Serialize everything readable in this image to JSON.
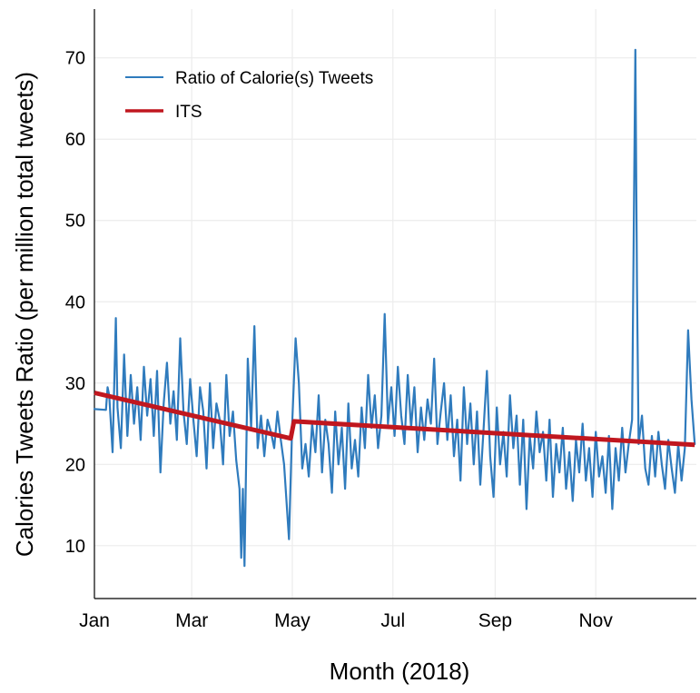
{
  "chart_data": {
    "type": "line",
    "title": "",
    "xlabel": "Month (2018)",
    "ylabel": "Calories Tweets Ratio (per million total tweets)",
    "ylim": [
      3.5,
      76
    ],
    "xlim": [
      "2018-01-01",
      "2018-12-31"
    ],
    "grid": true,
    "legend_position": "top-left",
    "x_ticks": [
      {
        "date": "2018-01-01",
        "label": "Jan"
      },
      {
        "date": "2018-03-01",
        "label": "Mar"
      },
      {
        "date": "2018-05-01",
        "label": "May"
      },
      {
        "date": "2018-07-01",
        "label": "Jul"
      },
      {
        "date": "2018-09-01",
        "label": "Sep"
      },
      {
        "date": "2018-11-01",
        "label": "Nov"
      }
    ],
    "y_ticks": [
      10,
      20,
      30,
      40,
      50,
      60,
      70
    ],
    "series": [
      {
        "name": "Ratio of Calorie(s) Tweets",
        "color": "#2f7bbd",
        "style": "thin-line",
        "points": [
          [
            "2018-01-01",
            26.8
          ],
          [
            "2018-01-08",
            26.7
          ],
          [
            "2018-01-09",
            29.5
          ],
          [
            "2018-01-10",
            28.5
          ],
          [
            "2018-01-12",
            21.5
          ],
          [
            "2018-01-14",
            38.0
          ],
          [
            "2018-01-15",
            27.0
          ],
          [
            "2018-01-17",
            22.0
          ],
          [
            "2018-01-19",
            33.5
          ],
          [
            "2018-01-21",
            23.5
          ],
          [
            "2018-01-23",
            31.0
          ],
          [
            "2018-01-25",
            25.0
          ],
          [
            "2018-01-27",
            29.5
          ],
          [
            "2018-01-29",
            23.0
          ],
          [
            "2018-01-31",
            32.0
          ],
          [
            "2018-02-02",
            26.0
          ],
          [
            "2018-02-04",
            30.5
          ],
          [
            "2018-02-06",
            23.5
          ],
          [
            "2018-02-08",
            31.5
          ],
          [
            "2018-02-10",
            19.0
          ],
          [
            "2018-02-12",
            27.5
          ],
          [
            "2018-02-14",
            32.5
          ],
          [
            "2018-02-16",
            25.0
          ],
          [
            "2018-02-18",
            29.0
          ],
          [
            "2018-02-20",
            23.0
          ],
          [
            "2018-02-22",
            35.5
          ],
          [
            "2018-02-24",
            26.5
          ],
          [
            "2018-02-26",
            22.5
          ],
          [
            "2018-02-28",
            30.5
          ],
          [
            "2018-03-02",
            25.5
          ],
          [
            "2018-03-04",
            21.0
          ],
          [
            "2018-03-06",
            29.5
          ],
          [
            "2018-03-08",
            26.5
          ],
          [
            "2018-03-10",
            19.5
          ],
          [
            "2018-03-12",
            30.0
          ],
          [
            "2018-03-14",
            22.0
          ],
          [
            "2018-03-16",
            27.5
          ],
          [
            "2018-03-18",
            25.5
          ],
          [
            "2018-03-20",
            20.0
          ],
          [
            "2018-03-22",
            31.0
          ],
          [
            "2018-03-24",
            23.5
          ],
          [
            "2018-03-26",
            26.5
          ],
          [
            "2018-03-28",
            20.5
          ],
          [
            "2018-03-30",
            17.0
          ],
          [
            "2018-03-31",
            8.5
          ],
          [
            "2018-04-01",
            17.0
          ],
          [
            "2018-04-02",
            7.5
          ],
          [
            "2018-04-04",
            33.0
          ],
          [
            "2018-04-06",
            24.5
          ],
          [
            "2018-04-08",
            37.0
          ],
          [
            "2018-04-10",
            22.0
          ],
          [
            "2018-04-12",
            26.0
          ],
          [
            "2018-04-14",
            21.0
          ],
          [
            "2018-04-16",
            25.5
          ],
          [
            "2018-04-18",
            24.0
          ],
          [
            "2018-04-20",
            22.0
          ],
          [
            "2018-04-22",
            26.5
          ],
          [
            "2018-04-24",
            23.0
          ],
          [
            "2018-04-26",
            20.0
          ],
          [
            "2018-04-29",
            10.8
          ],
          [
            "2018-05-01",
            25.5
          ],
          [
            "2018-05-03",
            35.5
          ],
          [
            "2018-05-05",
            30.0
          ],
          [
            "2018-05-07",
            19.5
          ],
          [
            "2018-05-09",
            22.5
          ],
          [
            "2018-05-11",
            18.5
          ],
          [
            "2018-05-13",
            25.0
          ],
          [
            "2018-05-15",
            21.5
          ],
          [
            "2018-05-17",
            28.5
          ],
          [
            "2018-05-19",
            19.0
          ],
          [
            "2018-05-21",
            25.5
          ],
          [
            "2018-05-23",
            22.5
          ],
          [
            "2018-05-25",
            16.5
          ],
          [
            "2018-05-27",
            26.5
          ],
          [
            "2018-05-29",
            20.0
          ],
          [
            "2018-05-31",
            24.5
          ],
          [
            "2018-06-02",
            17.0
          ],
          [
            "2018-06-04",
            27.5
          ],
          [
            "2018-06-06",
            19.5
          ],
          [
            "2018-06-08",
            23.0
          ],
          [
            "2018-06-10",
            18.5
          ],
          [
            "2018-06-12",
            27.0
          ],
          [
            "2018-06-14",
            22.0
          ],
          [
            "2018-06-16",
            31.0
          ],
          [
            "2018-06-18",
            24.5
          ],
          [
            "2018-06-20",
            28.5
          ],
          [
            "2018-06-22",
            22.0
          ],
          [
            "2018-06-24",
            26.0
          ],
          [
            "2018-06-26",
            38.5
          ],
          [
            "2018-06-28",
            25.0
          ],
          [
            "2018-06-30",
            29.5
          ],
          [
            "2018-07-02",
            23.5
          ],
          [
            "2018-07-04",
            32.0
          ],
          [
            "2018-07-06",
            26.0
          ],
          [
            "2018-07-08",
            22.5
          ],
          [
            "2018-07-10",
            31.0
          ],
          [
            "2018-07-12",
            24.5
          ],
          [
            "2018-07-14",
            29.5
          ],
          [
            "2018-07-16",
            21.5
          ],
          [
            "2018-07-18",
            27.0
          ],
          [
            "2018-07-20",
            23.0
          ],
          [
            "2018-07-22",
            28.0
          ],
          [
            "2018-07-24",
            25.0
          ],
          [
            "2018-07-26",
            33.0
          ],
          [
            "2018-07-28",
            22.5
          ],
          [
            "2018-07-30",
            26.5
          ],
          [
            "2018-08-01",
            30.0
          ],
          [
            "2018-08-03",
            23.0
          ],
          [
            "2018-08-05",
            28.5
          ],
          [
            "2018-08-07",
            21.0
          ],
          [
            "2018-08-09",
            25.5
          ],
          [
            "2018-08-11",
            18.0
          ],
          [
            "2018-08-13",
            29.5
          ],
          [
            "2018-08-15",
            22.5
          ],
          [
            "2018-08-17",
            27.5
          ],
          [
            "2018-08-19",
            20.0
          ],
          [
            "2018-08-21",
            26.5
          ],
          [
            "2018-08-23",
            17.5
          ],
          [
            "2018-08-25",
            24.5
          ],
          [
            "2018-08-27",
            31.5
          ],
          [
            "2018-08-29",
            21.0
          ],
          [
            "2018-08-31",
            16.0
          ],
          [
            "2018-09-02",
            27.0
          ],
          [
            "2018-09-04",
            20.0
          ],
          [
            "2018-09-06",
            24.0
          ],
          [
            "2018-09-08",
            18.5
          ],
          [
            "2018-09-10",
            28.5
          ],
          [
            "2018-09-12",
            22.0
          ],
          [
            "2018-09-14",
            26.0
          ],
          [
            "2018-09-16",
            17.5
          ],
          [
            "2018-09-18",
            25.5
          ],
          [
            "2018-09-20",
            14.5
          ],
          [
            "2018-09-22",
            23.5
          ],
          [
            "2018-09-24",
            19.5
          ],
          [
            "2018-09-26",
            26.5
          ],
          [
            "2018-09-28",
            21.5
          ],
          [
            "2018-09-30",
            24.0
          ],
          [
            "2018-10-02",
            18.0
          ],
          [
            "2018-10-04",
            25.5
          ],
          [
            "2018-10-06",
            16.0
          ],
          [
            "2018-10-08",
            22.5
          ],
          [
            "2018-10-10",
            19.0
          ],
          [
            "2018-10-12",
            24.5
          ],
          [
            "2018-10-14",
            17.0
          ],
          [
            "2018-10-16",
            21.5
          ],
          [
            "2018-10-18",
            15.5
          ],
          [
            "2018-10-20",
            23.0
          ],
          [
            "2018-10-22",
            19.0
          ],
          [
            "2018-10-24",
            25.0
          ],
          [
            "2018-10-26",
            18.0
          ],
          [
            "2018-10-28",
            22.0
          ],
          [
            "2018-10-30",
            16.0
          ],
          [
            "2018-11-01",
            24.0
          ],
          [
            "2018-11-03",
            18.5
          ],
          [
            "2018-11-05",
            21.0
          ],
          [
            "2018-11-07",
            16.5
          ],
          [
            "2018-11-09",
            23.5
          ],
          [
            "2018-11-11",
            14.5
          ],
          [
            "2018-11-13",
            22.0
          ],
          [
            "2018-11-15",
            18.0
          ],
          [
            "2018-11-17",
            24.5
          ],
          [
            "2018-11-19",
            19.0
          ],
          [
            "2018-11-21",
            22.5
          ],
          [
            "2018-11-23",
            25.5
          ],
          [
            "2018-11-25",
            71.0
          ],
          [
            "2018-11-26",
            42.0
          ],
          [
            "2018-11-27",
            22.5
          ],
          [
            "2018-11-29",
            26.0
          ],
          [
            "2018-12-01",
            19.5
          ],
          [
            "2018-12-03",
            17.5
          ],
          [
            "2018-12-05",
            23.5
          ],
          [
            "2018-12-07",
            18.5
          ],
          [
            "2018-12-09",
            24.0
          ],
          [
            "2018-12-11",
            20.0
          ],
          [
            "2018-12-13",
            17.0
          ],
          [
            "2018-12-15",
            23.0
          ],
          [
            "2018-12-17",
            19.5
          ],
          [
            "2018-12-19",
            16.5
          ],
          [
            "2018-12-21",
            22.5
          ],
          [
            "2018-12-23",
            18.0
          ],
          [
            "2018-12-25",
            22.0
          ],
          [
            "2018-12-27",
            36.5
          ],
          [
            "2018-12-29",
            28.0
          ],
          [
            "2018-12-31",
            22.5
          ]
        ]
      },
      {
        "name": "ITS",
        "color": "#c0171f",
        "style": "thick-line",
        "points": [
          [
            "2018-01-01",
            28.8
          ],
          [
            "2018-04-30",
            23.2
          ],
          [
            "2018-05-02",
            25.3
          ],
          [
            "2018-12-31",
            22.4
          ]
        ]
      }
    ]
  }
}
